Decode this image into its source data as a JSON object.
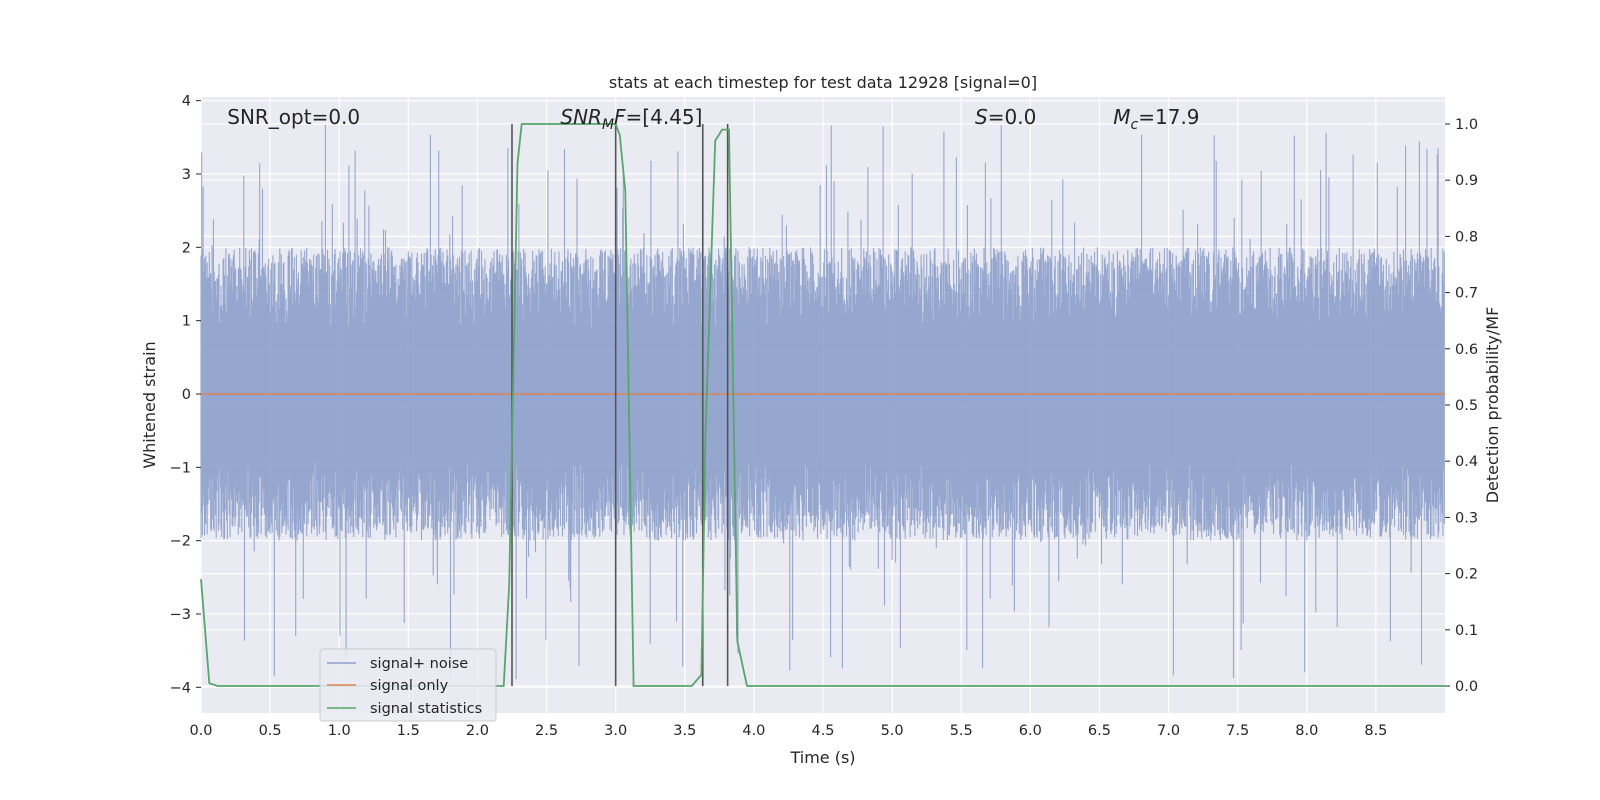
{
  "chart_data": {
    "type": "line",
    "title": "stats at each timestep for test data 12928 [signal=0]",
    "xlabel": "Time (s)",
    "ylabel": "Whitened strain",
    "y2label": "Detection probability/MF",
    "xlim": [
      0.0,
      9.0
    ],
    "ylim": [
      -4.35,
      4.05
    ],
    "y2lim": [
      -0.048,
      1.048
    ],
    "xticks": [
      "0.0",
      "0.5",
      "1.0",
      "1.5",
      "2.0",
      "2.5",
      "3.0",
      "3.5",
      "4.0",
      "4.5",
      "5.0",
      "5.5",
      "6.0",
      "6.5",
      "7.0",
      "7.5",
      "8.0",
      "8.5"
    ],
    "yticks": [
      "4",
      "3",
      "2",
      "1",
      "0",
      "−1",
      "−2",
      "−3",
      "−4"
    ],
    "y2ticks": [
      "1.0",
      "0.9",
      "0.8",
      "0.7",
      "0.6",
      "0.5",
      "0.4",
      "0.3",
      "0.2",
      "0.1",
      "0.0"
    ],
    "grid": true,
    "legend_position": "lower-left",
    "annotations": [
      {
        "parts": [
          {
            "text": "SNR_opt=0.0",
            "italic": false
          }
        ],
        "x": 0.19
      },
      {
        "parts": [
          {
            "text": "SNR",
            "italic": true
          },
          {
            "text": "M",
            "italic": true,
            "sub": true
          },
          {
            "text": "F",
            "italic": true
          },
          {
            "text": "=[4.45]",
            "italic": false
          }
        ],
        "x": 2.6
      },
      {
        "parts": [
          {
            "text": "S",
            "italic": true
          },
          {
            "text": "=0.0",
            "italic": false
          }
        ],
        "x": 5.6
      },
      {
        "parts": [
          {
            "text": "M",
            "italic": true
          },
          {
            "text": "c",
            "italic": true,
            "sub": true
          },
          {
            "text": "=17.9",
            "italic": false
          }
        ],
        "x": 6.6
      }
    ],
    "series": [
      {
        "name": "signal+ noise",
        "color": "#8da0cb",
        "kind": "noise",
        "x_range": [
          0.0,
          9.0
        ],
        "amplitude_envelope": {
          "typical": 2.0,
          "max_pos": 3.7,
          "min_neg": -4.0
        }
      },
      {
        "name": "signal only",
        "color": "#dd8452",
        "x": [
          0.0,
          9.0
        ],
        "y": [
          0.0,
          0.0
        ]
      },
      {
        "name": "signal statistics",
        "color": "#55a868",
        "axis": "right",
        "x": [
          0.0,
          0.06,
          0.12,
          2.19,
          2.23,
          2.29,
          2.32,
          2.98,
          3.0,
          3.03,
          3.07,
          3.13,
          3.16,
          3.55,
          3.62,
          3.65,
          3.72,
          3.77,
          3.82,
          3.88,
          3.95,
          9.0
        ],
        "y": [
          0.19,
          0.005,
          0.0,
          0.0,
          0.18,
          0.93,
          1.0,
          1.0,
          1.0,
          0.98,
          0.88,
          0.0,
          0.0,
          0.0,
          0.02,
          0.45,
          0.97,
          0.99,
          0.99,
          0.08,
          0.0,
          0.0
        ]
      }
    ],
    "vlines": [
      2.25,
      3.0,
      3.63,
      3.81
    ]
  }
}
